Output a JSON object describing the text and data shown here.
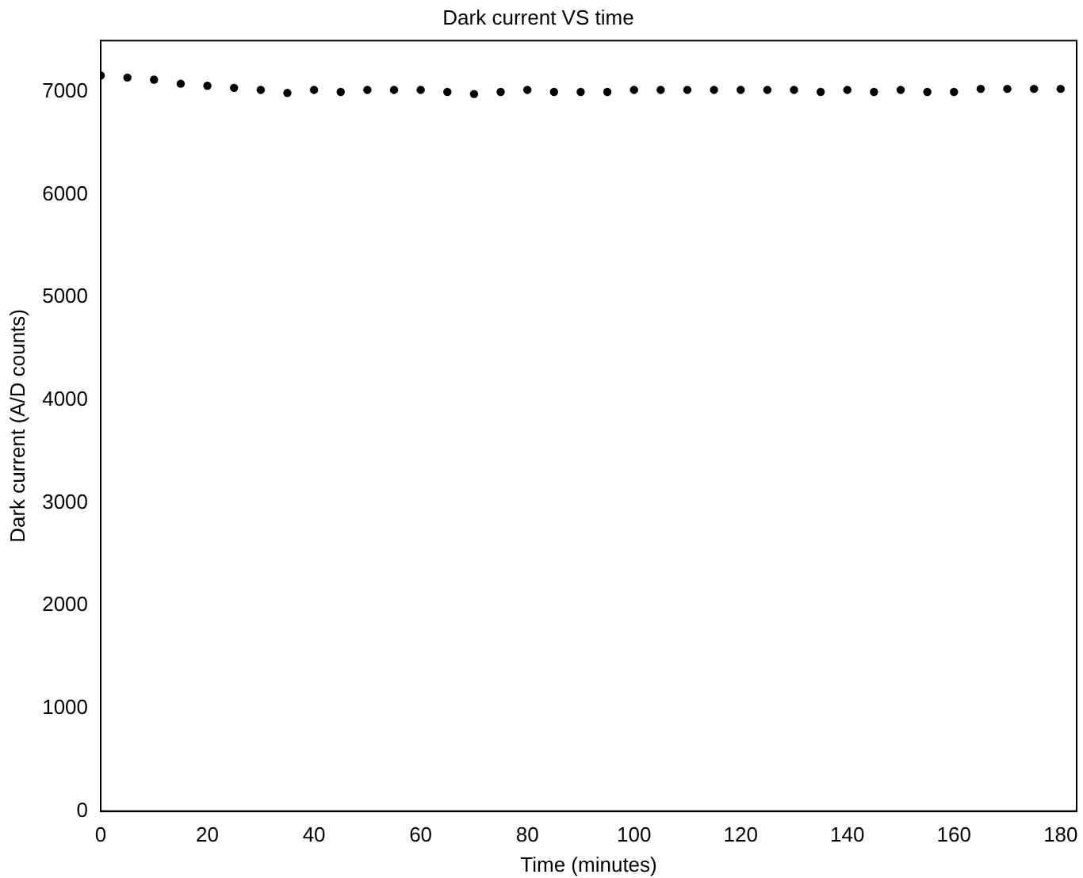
{
  "chart_data": {
    "type": "scatter",
    "title": "Dark current VS time",
    "xlabel": "Time (minutes)",
    "ylabel": "Dark current (A/D counts)",
    "x": [
      0,
      5,
      10,
      15,
      20,
      25,
      30,
      35,
      40,
      45,
      50,
      55,
      60,
      65,
      70,
      75,
      80,
      85,
      90,
      95,
      100,
      105,
      110,
      115,
      120,
      125,
      130,
      135,
      140,
      145,
      150,
      155,
      160,
      165,
      170,
      175,
      180
    ],
    "series": [
      {
        "color": "#000000",
        "values": [
          7160,
          7140,
          7120,
          7080,
          7060,
          7040,
          7020,
          6990,
          7020,
          7000,
          7020,
          7020,
          7020,
          7000,
          6980,
          7000,
          7020,
          7000,
          7000,
          7000,
          7020,
          7020,
          7020,
          7020,
          7020,
          7020,
          7020,
          7000,
          7020,
          7000,
          7020,
          7000,
          7000,
          7030,
          7030,
          7030,
          7030
        ]
      }
    ],
    "xlim": [
      0,
      183
    ],
    "xticks": [
      0,
      20,
      40,
      60,
      80,
      100,
      120,
      140,
      160,
      180
    ],
    "ylim": [
      0,
      7500
    ],
    "yticks": [
      0,
      1000,
      2000,
      3000,
      4000,
      5000,
      6000,
      7000
    ],
    "grid": false,
    "legend": false,
    "marker": "circle"
  }
}
